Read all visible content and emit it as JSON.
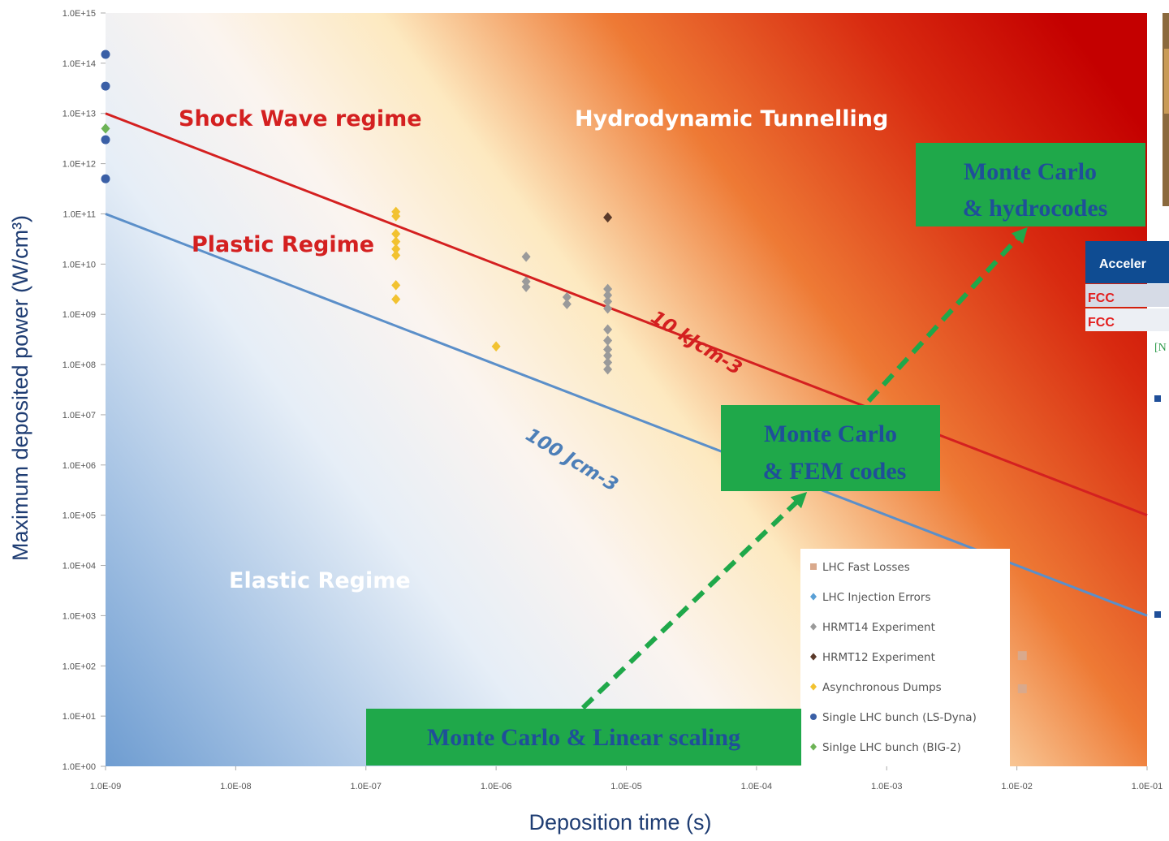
{
  "chart_data": {
    "type": "scatter",
    "title": "",
    "xlabel": "Deposition time (s)",
    "ylabel": "Maximum deposited power (W/cm³)",
    "xscale": "log",
    "yscale": "log",
    "xlim": [
      1e-09,
      0.1
    ],
    "ylim": [
      1,
      1000000000000000.0
    ],
    "grid": false,
    "legend_placement": "bottom-right",
    "x_ticks": [
      "1.0E-09",
      "1.0E-08",
      "1.0E-07",
      "1.0E-06",
      "1.0E-05",
      "1.0E-04",
      "1.0E-03",
      "1.0E-02",
      "1.0E-01"
    ],
    "y_ticks": [
      "1.0E+00",
      "1.0E+01",
      "1.0E+02",
      "1.0E+03",
      "1.0E+04",
      "1.0E+05",
      "1.0E+06",
      "1.0E+07",
      "1.0E+08",
      "1.0E+09",
      "1.0E+10",
      "1.0E+11",
      "1.0E+12",
      "1.0E+13",
      "1.0E+14",
      "1.0E+15"
    ],
    "regions": [
      "Shock Wave regime",
      "Hydrodynamic Tunnelling",
      "Plastic Regime",
      "Elastic Regime"
    ],
    "threshold_lines": [
      {
        "label": "10 kJcm-3",
        "energy_density": 10000,
        "color": "#d42020"
      },
      {
        "label": "100 Jcm-3",
        "energy_density": 100,
        "color": "#5b8fc9"
      }
    ],
    "series": [
      {
        "name": "LHC Fast Losses",
        "color": "#d9a98c",
        "marker": "square",
        "points": [
          [
            0.011,
            160
          ],
          [
            0.011,
            35
          ]
        ]
      },
      {
        "name": "LHC Injection Errors",
        "color": "#5aa0d6",
        "marker": "diamond",
        "points": []
      },
      {
        "name": "HRMT14 Experiment",
        "color": "#9a9a9a",
        "marker": "diamond",
        "points": [
          [
            1.7e-06,
            14000000000.0
          ],
          [
            1.7e-06,
            4500000000.0
          ],
          [
            1.7e-06,
            3500000000.0
          ],
          [
            3.5e-06,
            2200000000.0
          ],
          [
            3.5e-06,
            1600000000.0
          ],
          [
            7.2e-06,
            3200000000.0
          ],
          [
            7.2e-06,
            2400000000.0
          ],
          [
            7.2e-06,
            1800000000.0
          ],
          [
            7.2e-06,
            1300000000.0
          ],
          [
            7.2e-06,
            500000000.0
          ],
          [
            7.2e-06,
            300000000.0
          ],
          [
            7.2e-06,
            200000000.0
          ],
          [
            7.2e-06,
            150000000.0
          ],
          [
            7.2e-06,
            110000000.0
          ],
          [
            7.2e-06,
            80000000.0
          ]
        ]
      },
      {
        "name": "HRMT12 Experiment",
        "color": "#5a3a2a",
        "marker": "diamond",
        "points": [
          [
            7.2e-06,
            85000000000.0
          ]
        ]
      },
      {
        "name": "Asynchronous Dumps",
        "color": "#f2c230",
        "marker": "diamond",
        "points": [
          [
            1.7e-07,
            110000000000.0
          ],
          [
            1.7e-07,
            90000000000.0
          ],
          [
            1.7e-07,
            40000000000.0
          ],
          [
            1.7e-07,
            28000000000.0
          ],
          [
            1.7e-07,
            20000000000.0
          ],
          [
            1.7e-07,
            15000000000.0
          ],
          [
            1.7e-07,
            3800000000.0
          ],
          [
            1.7e-07,
            2000000000.0
          ],
          [
            1e-06,
            230000000.0
          ]
        ]
      },
      {
        "name": "Single LHC bunch (LS-Dyna)",
        "color": "#3a5fa6",
        "marker": "circle",
        "points": [
          [
            1e-09,
            150000000000000.0
          ],
          [
            1e-09,
            35000000000000.0
          ],
          [
            1e-09,
            3000000000000.0
          ],
          [
            1e-09,
            500000000000.0
          ]
        ]
      },
      {
        "name": "Sinlge LHC bunch (BIG-2)",
        "color": "#6db356",
        "marker": "diamond",
        "points": [
          [
            1e-09,
            5000000000000.0
          ]
        ]
      }
    ],
    "annotations": [
      {
        "text": [
          "Monte Carlo",
          "& hydrocodes"
        ]
      },
      {
        "text": [
          "Monte Carlo",
          "& FEM codes"
        ]
      },
      {
        "text": [
          "Monte Carlo & Linear scaling"
        ]
      }
    ]
  },
  "side_panel": {
    "header": "Acceler",
    "rows": [
      "FCC",
      "FCC"
    ],
    "note": "[N"
  }
}
